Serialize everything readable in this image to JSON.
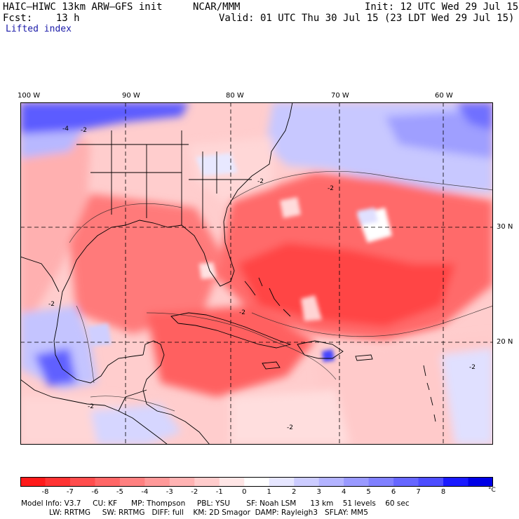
{
  "header": {
    "model_title": "HAIC–HIWC 13km ARW–GFS init",
    "org": "NCAR/MMM",
    "init": "Init: 12 UTC Wed 29 Jul 15",
    "fcst": "Fcst:    13 h",
    "valid": "Valid: 01 UTC Thu 30 Jul 15 (23 LDT Wed 29 Jul 15)",
    "field": "Lifted index"
  },
  "map": {
    "lon_labels": [
      "100 W",
      "90 W",
      "80 W",
      "70 W",
      "60 W"
    ],
    "lat_labels": [
      "30 N",
      "20 N"
    ],
    "contour_labels": [
      "-4",
      "-2",
      "-2",
      "-2",
      "-2",
      "-2",
      "-2",
      "-2",
      "-2"
    ]
  },
  "colorbar": {
    "ticks": [
      "-8",
      "-7",
      "-6",
      "-5",
      "-4",
      "-3",
      "-2",
      "-1",
      "0",
      "1",
      "2",
      "3",
      "4",
      "5",
      "6",
      "7",
      "8"
    ],
    "unit": "°C",
    "colors": [
      "#ff1a1a",
      "#ff3333",
      "#ff4d4d",
      "#ff6666",
      "#ff8080",
      "#ff9999",
      "#ffb3b3",
      "#ffcccc",
      "#ffe6e6",
      "#ffffff",
      "#e6e6ff",
      "#ccccff",
      "#b3b3ff",
      "#9999ff",
      "#8080ff",
      "#6666ff",
      "#4d4dff",
      "#1a1aff",
      "#0000e6"
    ]
  },
  "model_info": {
    "line1": "Model Info: V3.7     CU: KF      MP: Thompson     PBL: YSU       SF: Noah LSM      13 km    51 levels    60 sec",
    "line2": "            LW: RRTMG     SW: RRTMG   DIFF: full    KM: 2D Smagor  DAMP: Rayleigh3   SFLAY: MM5"
  }
}
